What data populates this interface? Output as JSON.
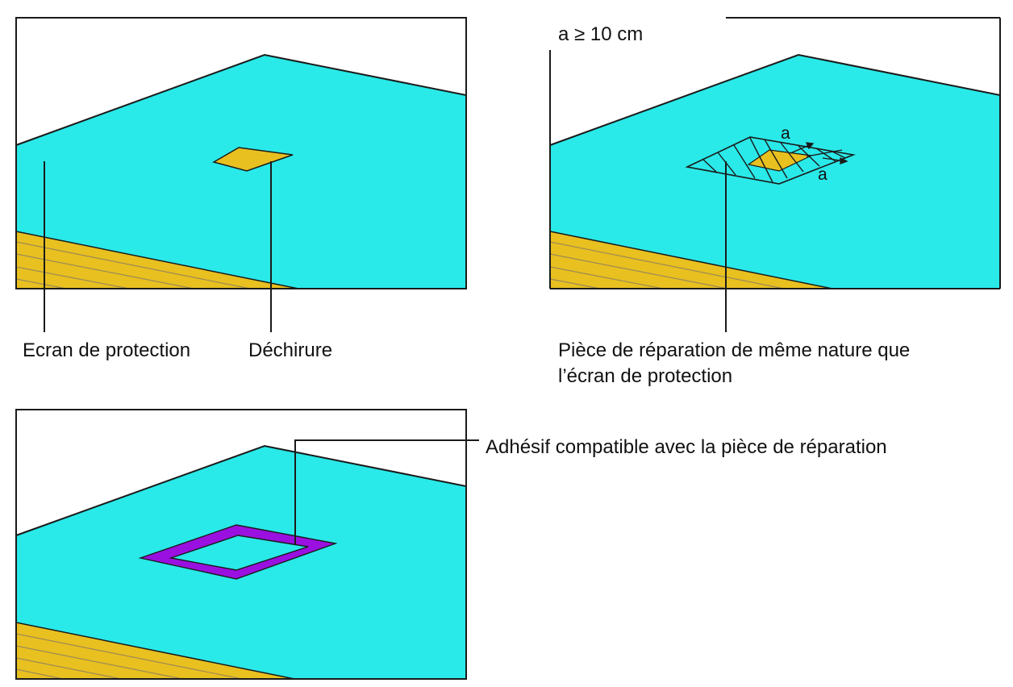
{
  "colors": {
    "screen": "#2ae9e9",
    "tear": "#e8c020",
    "adhesive": "#9a10e0",
    "stroke": "#1a1a1a",
    "insulation_line": "#9c8a55"
  },
  "panel1": {
    "label_screen": "Ecran de protection",
    "label_tear": "Déchirure"
  },
  "panel2": {
    "dimension_note": "a ≥ 10 cm",
    "dim_a_top": "a",
    "dim_a_bottom": "a",
    "label_patch_line1": "Pièce de réparation de même nature que",
    "label_patch_line2": "l’écran de protection"
  },
  "panel3": {
    "label_adhesive": "Adhésif compatible avec la pièce de réparation"
  }
}
